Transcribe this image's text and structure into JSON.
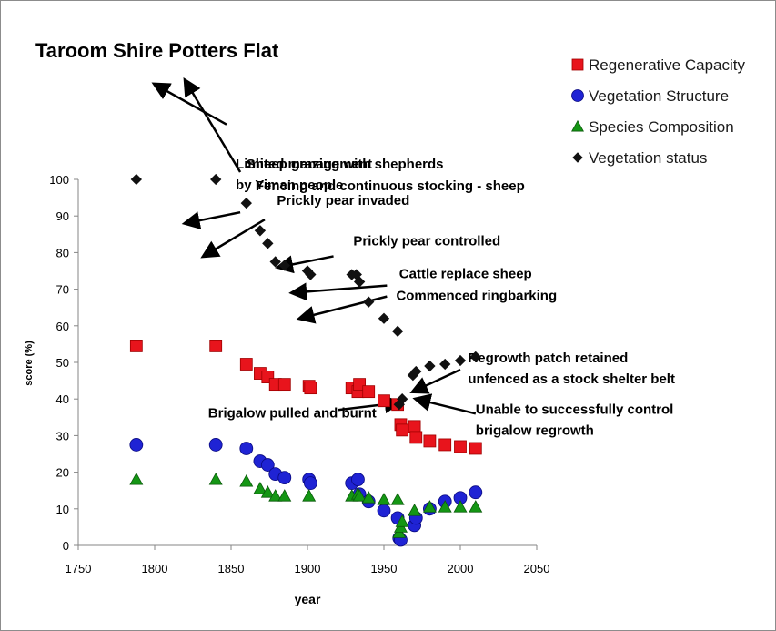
{
  "chart_data": {
    "type": "scatter",
    "title": "Taroom Shire Potters  Flat",
    "xlabel": "year",
    "ylabel": "score  (%)",
    "xlim": [
      1750,
      2050
    ],
    "ylim": [
      0,
      100
    ],
    "xticks": [
      1750,
      1800,
      1850,
      1900,
      1950,
      2000,
      2050
    ],
    "yticks": [
      0,
      10,
      20,
      30,
      40,
      50,
      60,
      70,
      80,
      90,
      100
    ],
    "grid": false,
    "legend": "top-right",
    "series": [
      {
        "name": "Regenerative Capacity",
        "marker": "square",
        "color": "#e8141c",
        "points": [
          [
            1788,
            54.5
          ],
          [
            1840,
            54.5
          ],
          [
            1860,
            49.5
          ],
          [
            1869,
            47
          ],
          [
            1874,
            46
          ],
          [
            1879,
            44
          ],
          [
            1885,
            44
          ],
          [
            1901,
            43.5
          ],
          [
            1902,
            43
          ],
          [
            1929,
            43
          ],
          [
            1933,
            42
          ],
          [
            1934,
            44
          ],
          [
            1940,
            42
          ],
          [
            1950,
            39.5
          ],
          [
            1959,
            38.5
          ],
          [
            1961,
            33
          ],
          [
            1962,
            31.5
          ],
          [
            1970,
            32.5
          ],
          [
            1971,
            29.5
          ],
          [
            1980,
            28.5
          ],
          [
            1990,
            27.5
          ],
          [
            2000,
            27
          ],
          [
            2010,
            26.5
          ]
        ]
      },
      {
        "name": "Vegetation Structure",
        "marker": "circle",
        "color": "#1f23d4",
        "points": [
          [
            1788,
            27.5
          ],
          [
            1840,
            27.5
          ],
          [
            1860,
            26.5
          ],
          [
            1869,
            23
          ],
          [
            1874,
            22
          ],
          [
            1879,
            19.5
          ],
          [
            1885,
            18.5
          ],
          [
            1901,
            18
          ],
          [
            1902,
            17
          ],
          [
            1929,
            17
          ],
          [
            1933,
            18
          ],
          [
            1934,
            14
          ],
          [
            1940,
            12
          ],
          [
            1950,
            9.5
          ],
          [
            1959,
            7.5
          ],
          [
            1960,
            2
          ],
          [
            1961,
            1.5
          ],
          [
            1970,
            5.5
          ],
          [
            1971,
            7.5
          ],
          [
            1980,
            10
          ],
          [
            1990,
            12
          ],
          [
            2000,
            13
          ],
          [
            2010,
            14.5
          ]
        ]
      },
      {
        "name": "Species Composition",
        "marker": "triangle",
        "color": "#149614",
        "points": [
          [
            1788,
            18
          ],
          [
            1840,
            18
          ],
          [
            1860,
            17.5
          ],
          [
            1869,
            15.5
          ],
          [
            1874,
            14.5
          ],
          [
            1879,
            13.5
          ],
          [
            1885,
            13.5
          ],
          [
            1901,
            13.5
          ],
          [
            1929,
            13.5
          ],
          [
            1933,
            14
          ],
          [
            1934,
            13.5
          ],
          [
            1940,
            13
          ],
          [
            1950,
            12.5
          ],
          [
            1959,
            12.5
          ],
          [
            1960,
            3.5
          ],
          [
            1961,
            5
          ],
          [
            1962,
            6.5
          ],
          [
            1970,
            9.5
          ],
          [
            1980,
            10.5
          ],
          [
            1990,
            10.5
          ],
          [
            2000,
            10.5
          ],
          [
            2010,
            10.5
          ]
        ]
      },
      {
        "name": "Vegetation status",
        "marker": "diamond",
        "color": "#111111",
        "points": [
          [
            1788,
            100
          ],
          [
            1840,
            100
          ],
          [
            1860,
            93.5
          ],
          [
            1869,
            86
          ],
          [
            1874,
            82.5
          ],
          [
            1879,
            77.5
          ],
          [
            1885,
            76.5
          ],
          [
            1900,
            75
          ],
          [
            1902,
            74
          ],
          [
            1929,
            74
          ],
          [
            1932,
            74
          ],
          [
            1934,
            72
          ],
          [
            1940,
            66.5
          ],
          [
            1950,
            62
          ],
          [
            1959,
            58.5
          ],
          [
            1960,
            38.5
          ],
          [
            1962,
            40
          ],
          [
            1969,
            46.5
          ],
          [
            1971,
            47.5
          ],
          [
            1980,
            49
          ],
          [
            1990,
            49.5
          ],
          [
            2000,
            50.5
          ],
          [
            2010,
            51.5
          ]
        ]
      }
    ],
    "annotations": [
      {
        "lines": [
          "Limited management",
          "by Yiman people"
        ],
        "text_pos": [
          1853,
          103
        ],
        "line_start": [
          1847,
          115
        ],
        "line_end": [
          1800,
          126
        ]
      },
      {
        "lines": [
          "Sheep grazing with shepherds"
        ],
        "text_pos": [
          1860,
          103
        ],
        "line_start": [
          1856,
          102
        ],
        "line_end": [
          1820,
          127
        ]
      },
      {
        "lines": [
          "Fencing and continuous stocking - sheep"
        ],
        "text_pos": [
          1866,
          97
        ],
        "line_start": [
          1856,
          91
        ],
        "line_end": [
          1820,
          88
        ]
      },
      {
        "lines": [
          "Prickly pear invaded"
        ],
        "text_pos": [
          1880,
          93
        ],
        "line_start": [
          1872,
          89
        ],
        "line_end": [
          1832,
          79
        ]
      },
      {
        "lines": [
          "Prickly pear controlled"
        ],
        "text_pos": [
          1930,
          82
        ],
        "line_start": [
          1917,
          79
        ],
        "line_end": [
          1881,
          76
        ]
      },
      {
        "lines": [
          "Cattle replace sheep"
        ],
        "text_pos": [
          1960,
          73
        ],
        "line_start": [
          1952,
          71
        ],
        "line_end": [
          1890,
          69
        ]
      },
      {
        "lines": [
          "Commenced ringbarking"
        ],
        "text_pos": [
          1958,
          67
        ],
        "line_start": [
          1952,
          68
        ],
        "line_end": [
          1895,
          62
        ]
      },
      {
        "lines": [
          "Regrowth patch retained",
          "unfenced as a stock shelter belt"
        ],
        "text_pos": [
          2005,
          50
        ],
        "line_start": [
          2000,
          48
        ],
        "line_end": [
          1969,
          42
        ]
      },
      {
        "lines": [
          "Brigalow pulled and burnt"
        ],
        "text_pos": [
          1835,
          35
        ],
        "line_start": [
          1920,
          37
        ],
        "line_end": [
          1960,
          39
        ]
      },
      {
        "lines": [
          "Unable to successfully control",
          "brigalow regrowth"
        ],
        "text_pos": [
          2010,
          36
        ],
        "line_start": [
          2010,
          36
        ],
        "line_end": [
          1971,
          40
        ]
      }
    ]
  }
}
